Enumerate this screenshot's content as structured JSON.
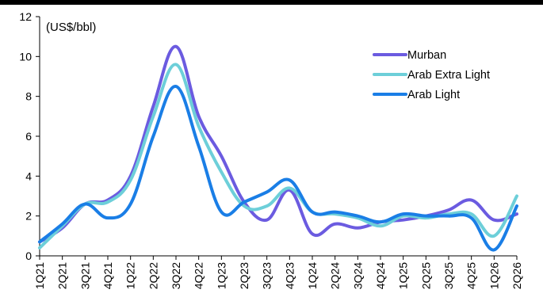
{
  "chart_data": {
    "type": "line",
    "title": "",
    "xlabel": "",
    "ylabel": "(US$/bbl)",
    "ylim": [
      0,
      12
    ],
    "yticks": [
      0,
      2,
      4,
      6,
      8,
      10,
      12
    ],
    "grid": false,
    "legend_position": "top-right",
    "categories": [
      "1Q21",
      "2Q21",
      "3Q21",
      "4Q21",
      "1Q22",
      "2Q22",
      "3Q22",
      "4Q22",
      "1Q23",
      "2Q23",
      "3Q23",
      "4Q23",
      "1Q24",
      "2Q24",
      "3Q24",
      "4Q24",
      "1Q25",
      "2Q25",
      "3Q25",
      "4Q25",
      "1Q26",
      "2Q26"
    ],
    "series": [
      {
        "name": "Murban",
        "color": "#6b5be0",
        "values": [
          0.7,
          1.4,
          2.6,
          2.8,
          4.0,
          7.5,
          10.5,
          7.0,
          5.0,
          2.7,
          1.8,
          3.3,
          1.1,
          1.6,
          1.4,
          1.7,
          1.8,
          2.0,
          2.3,
          2.8,
          1.8,
          2.1
        ]
      },
      {
        "name": "Arab Extra Light",
        "color": "#6dcfd9",
        "values": [
          0.4,
          1.5,
          2.6,
          2.7,
          3.8,
          7.0,
          9.6,
          6.5,
          4.2,
          2.5,
          2.5,
          3.4,
          2.2,
          2.1,
          1.9,
          1.5,
          2.0,
          1.9,
          2.1,
          2.1,
          1.0,
          3.0
        ]
      },
      {
        "name": "Arab Light",
        "color": "#1a7ee6",
        "values": [
          0.7,
          1.6,
          2.6,
          1.9,
          2.6,
          6.0,
          8.5,
          5.5,
          2.2,
          2.7,
          3.2,
          3.8,
          2.2,
          2.2,
          2.0,
          1.7,
          2.1,
          2.0,
          2.0,
          1.9,
          0.3,
          2.5
        ]
      }
    ]
  }
}
